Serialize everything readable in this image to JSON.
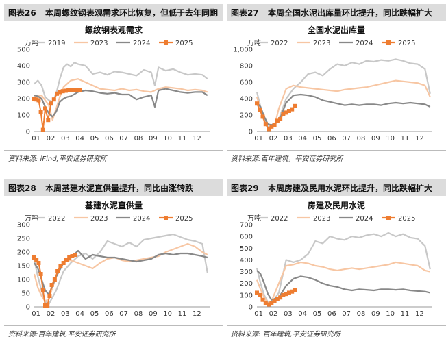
{
  "panels": [
    {
      "fig_label": "图表26",
      "title": "本周螺纹钢表观需求环比恢复，但低于去年同期",
      "source": "资料来源: iFind,平安证券研究所"
    },
    {
      "fig_label": "图表27",
      "title": "本周全国水泥出库量环比提升，同比跌幅扩大",
      "source": "资料来源:百年建筑，平安证券研究所"
    },
    {
      "fig_label": "图表28",
      "title": "本周基建水泥直供量提升，同比由涨转跌",
      "source": "资料来源:百年建筑,平安证券研究所"
    },
    {
      "fig_label": "图表29",
      "title": "本周房建及民用水泥环比提升，同比跌幅扩大",
      "source": "资料来源: 百年建筑,平安证券研究所"
    }
  ],
  "chart_data": [
    {
      "type": "line",
      "title": "螺纹钢表观需求",
      "ylabel": "万吨",
      "ylim": [
        0,
        500
      ],
      "yticks": [
        "0",
        "100",
        "200",
        "300",
        "400",
        "500"
      ],
      "x_ticks": [
        "01",
        "02",
        "03",
        "04",
        "05",
        "06",
        "07",
        "08",
        "09",
        "10",
        "11",
        "12"
      ],
      "x_range": [
        1,
        13
      ],
      "legend_position": "top",
      "series": [
        {
          "name": "2019",
          "color": "#c8c8c8",
          "x": [
            1.0,
            1.25,
            1.5,
            1.75,
            2.0,
            2.25,
            2.5,
            2.75,
            3.0,
            3.25,
            3.5,
            3.75,
            4.0,
            4.5,
            5.0,
            5.5,
            6.0,
            6.5,
            7.0,
            7.5,
            8.0,
            8.5,
            9.0,
            9.25,
            9.5,
            10.0,
            10.5,
            11.0,
            11.5,
            12.0,
            12.5,
            12.85
          ],
          "y": [
            290,
            310,
            280,
            210,
            190,
            180,
            230,
            320,
            390,
            410,
            395,
            420,
            410,
            400,
            350,
            360,
            345,
            365,
            360,
            350,
            340,
            375,
            360,
            280,
            390,
            370,
            380,
            360,
            345,
            350,
            345,
            320
          ]
        },
        {
          "name": "2023",
          "color": "#f7c6a3",
          "x": [
            1.0,
            1.5,
            2.0,
            2.25,
            2.5,
            2.75,
            3.0,
            3.5,
            4.0,
            4.5,
            5.0,
            5.5,
            6.0,
            6.5,
            7.0,
            7.5,
            8.0,
            8.5,
            9.0,
            9.5,
            10.0,
            10.5,
            11.0,
            11.5,
            12.0,
            12.5,
            12.85
          ],
          "y": [
            210,
            220,
            160,
            70,
            140,
            210,
            270,
            310,
            320,
            300,
            280,
            260,
            255,
            250,
            260,
            250,
            255,
            245,
            240,
            260,
            270,
            265,
            260,
            250,
            255,
            250,
            240
          ]
        },
        {
          "name": "2024",
          "color": "#888888",
          "x": [
            1.0,
            1.25,
            1.5,
            1.75,
            2.0,
            2.25,
            2.5,
            2.75,
            3.0,
            3.25,
            3.5,
            4.0,
            4.5,
            5.0,
            5.5,
            6.0,
            6.5,
            7.0,
            7.5,
            8.0,
            8.5,
            9.0,
            9.25,
            9.5,
            10.0,
            10.5,
            11.0,
            11.5,
            12.0,
            12.5,
            12.85
          ],
          "y": [
            220,
            215,
            200,
            150,
            110,
            90,
            120,
            180,
            200,
            210,
            215,
            240,
            250,
            245,
            235,
            230,
            235,
            225,
            225,
            195,
            210,
            220,
            150,
            250,
            260,
            250,
            240,
            235,
            240,
            240,
            220
          ]
        },
        {
          "name": "2025",
          "color": "#ee7d31",
          "marker": "square",
          "x": [
            1.0,
            1.15,
            1.3,
            1.45,
            1.6,
            1.75,
            1.95,
            2.15,
            2.35,
            2.55,
            2.75,
            2.95,
            3.15,
            3.35,
            3.55,
            3.75,
            3.95,
            4.1
          ],
          "y": [
            200,
            195,
            190,
            120,
            10,
            140,
            70,
            170,
            195,
            230,
            240,
            245,
            248,
            250,
            252,
            253,
            252,
            250
          ]
        }
      ]
    },
    {
      "type": "line",
      "title": "全国水泥出库量",
      "ylabel": "万吨",
      "ylim": [
        0,
        1000
      ],
      "yticks": [
        "0",
        "200",
        "400",
        "600",
        "800",
        "1,000"
      ],
      "x_ticks": [
        "01",
        "02",
        "03",
        "04",
        "05",
        "06",
        "07",
        "08",
        "09",
        "10",
        "11",
        "12"
      ],
      "x_range": [
        1,
        13
      ],
      "legend_position": "top",
      "series": [
        {
          "name": "2022",
          "color": "#c8c8c8",
          "x": [
            1.0,
            1.25,
            1.5,
            1.75,
            2.0,
            2.5,
            3.0,
            3.5,
            4.0,
            4.5,
            5.0,
            5.5,
            6.0,
            6.5,
            7.0,
            7.5,
            8.0,
            8.5,
            9.0,
            9.5,
            10.0,
            10.5,
            11.0,
            11.5,
            12.0,
            12.5,
            12.85
          ],
          "y": [
            480,
            300,
            150,
            60,
            40,
            150,
            400,
            520,
            600,
            700,
            720,
            680,
            760,
            820,
            800,
            840,
            820,
            860,
            850,
            870,
            860,
            880,
            860,
            830,
            820,
            760,
            460
          ]
        },
        {
          "name": "2023",
          "color": "#f7c6a3",
          "x": [
            1.0,
            1.25,
            1.5,
            1.75,
            2.0,
            2.25,
            2.5,
            3.0,
            3.5,
            4.0,
            4.5,
            5.0,
            5.5,
            6.0,
            6.5,
            7.0,
            7.5,
            8.0,
            8.5,
            9.0,
            9.5,
            10.0,
            10.5,
            11.0,
            11.5,
            12.0,
            12.5,
            12.85
          ],
          "y": [
            420,
            280,
            120,
            40,
            70,
            100,
            280,
            520,
            560,
            540,
            530,
            520,
            510,
            500,
            490,
            510,
            520,
            530,
            540,
            560,
            580,
            600,
            620,
            610,
            600,
            590,
            560,
            420
          ]
        },
        {
          "name": "2024",
          "color": "#888888",
          "x": [
            1.0,
            1.25,
            1.5,
            1.75,
            2.0,
            2.5,
            3.0,
            3.5,
            4.0,
            4.5,
            5.0,
            5.5,
            6.0,
            6.5,
            7.0,
            7.5,
            8.0,
            8.5,
            9.0,
            9.5,
            10.0,
            10.5,
            11.0,
            11.5,
            12.0,
            12.5,
            12.85
          ],
          "y": [
            350,
            300,
            180,
            90,
            80,
            120,
            350,
            440,
            450,
            440,
            420,
            380,
            360,
            340,
            320,
            330,
            320,
            330,
            330,
            320,
            340,
            350,
            340,
            350,
            340,
            330,
            300
          ]
        },
        {
          "name": "2025",
          "color": "#ee7d31",
          "marker": "square",
          "x": [
            1.0,
            1.2,
            1.4,
            1.6,
            1.8,
            2.0,
            2.2,
            2.4,
            2.6,
            2.8,
            3.0,
            3.2,
            3.4,
            3.6
          ],
          "y": [
            340,
            260,
            180,
            90,
            30,
            60,
            80,
            130,
            150,
            210,
            230,
            250,
            270,
            310
          ]
        }
      ]
    },
    {
      "type": "line",
      "title": "基建水泥直供量",
      "ylabel": "万吨",
      "ylim": [
        0,
        300
      ],
      "yticks": [
        "0",
        "50",
        "100",
        "150",
        "200",
        "250",
        "300"
      ],
      "x_ticks": [
        "01",
        "02",
        "03",
        "04",
        "05",
        "06",
        "07",
        "08",
        "09",
        "10",
        "11",
        "12"
      ],
      "x_range": [
        1,
        13
      ],
      "legend_position": "top",
      "series": [
        {
          "name": "2022",
          "color": "#c8c8c8",
          "x": [
            1.0,
            1.25,
            1.5,
            1.75,
            2.0,
            2.5,
            3.0,
            3.5,
            4.0,
            4.5,
            5.0,
            5.5,
            6.0,
            6.5,
            7.0,
            7.5,
            8.0,
            8.5,
            9.0,
            9.5,
            10.0,
            10.5,
            11.0,
            11.5,
            12.0,
            12.5,
            12.85
          ],
          "y": [
            170,
            110,
            60,
            20,
            10,
            60,
            130,
            160,
            185,
            195,
            175,
            200,
            240,
            230,
            220,
            235,
            220,
            245,
            250,
            255,
            260,
            265,
            255,
            245,
            240,
            230,
            125
          ]
        },
        {
          "name": "2023",
          "color": "#f7c6a3",
          "x": [
            1.0,
            1.25,
            1.5,
            1.75,
            2.0,
            2.5,
            3.0,
            3.5,
            4.0,
            4.5,
            5.0,
            5.5,
            6.0,
            6.5,
            7.0,
            7.5,
            8.0,
            8.5,
            9.0,
            9.5,
            10.0,
            10.5,
            11.0,
            11.5,
            12.0,
            12.5,
            12.85
          ],
          "y": [
            120,
            70,
            40,
            20,
            30,
            110,
            165,
            170,
            160,
            150,
            140,
            160,
            175,
            180,
            170,
            165,
            170,
            175,
            180,
            185,
            200,
            210,
            220,
            230,
            220,
            200,
            190
          ]
        },
        {
          "name": "2024",
          "color": "#888888",
          "x": [
            1.0,
            1.25,
            1.5,
            1.75,
            2.0,
            2.5,
            3.0,
            3.5,
            4.0,
            4.5,
            5.0,
            5.5,
            6.0,
            6.5,
            7.0,
            7.5,
            8.0,
            8.5,
            9.0,
            9.5,
            10.0,
            10.5,
            11.0,
            11.5,
            12.0,
            12.5,
            12.85
          ],
          "y": [
            160,
            140,
            100,
            60,
            45,
            110,
            160,
            180,
            205,
            175,
            190,
            185,
            180,
            180,
            175,
            170,
            165,
            170,
            175,
            190,
            195,
            190,
            195,
            195,
            190,
            185,
            180
          ]
        },
        {
          "name": "2025",
          "color": "#ee7d31",
          "marker": "square",
          "x": [
            1.0,
            1.15,
            1.3,
            1.45,
            1.6,
            1.75,
            1.9,
            2.05,
            2.2,
            2.4,
            2.6,
            2.8,
            3.0,
            3.2,
            3.4,
            3.6,
            3.8
          ],
          "y": [
            180,
            170,
            160,
            120,
            60,
            5,
            5,
            40,
            80,
            100,
            130,
            150,
            160,
            170,
            180,
            185,
            190
          ]
        }
      ]
    },
    {
      "type": "line",
      "title": "房建及民用水泥",
      "ylabel": "万吨",
      "ylim": [
        0,
        700
      ],
      "yticks": [
        "0",
        "100",
        "200",
        "300",
        "400",
        "500",
        "600",
        "700"
      ],
      "x_ticks": [
        "01",
        "02",
        "03",
        "04",
        "05",
        "06",
        "07",
        "08",
        "09",
        "10",
        "11",
        "12"
      ],
      "x_range": [
        1,
        13
      ],
      "legend_position": "top",
      "series": [
        {
          "name": "2022",
          "color": "#c8c8c8",
          "x": [
            1.0,
            1.25,
            1.5,
            1.75,
            2.0,
            2.5,
            3.0,
            3.5,
            4.0,
            4.5,
            5.0,
            5.5,
            6.0,
            6.5,
            7.0,
            7.5,
            8.0,
            8.5,
            9.0,
            9.5,
            10.0,
            10.5,
            11.0,
            11.5,
            12.0,
            12.5,
            12.85
          ],
          "y": [
            330,
            200,
            100,
            40,
            30,
            120,
            400,
            380,
            400,
            450,
            560,
            540,
            600,
            580,
            570,
            600,
            590,
            610,
            620,
            600,
            630,
            600,
            620,
            590,
            580,
            520,
            320
          ]
        },
        {
          "name": "2023",
          "color": "#f7c6a3",
          "x": [
            1.0,
            1.25,
            1.5,
            1.75,
            2.0,
            2.5,
            3.0,
            3.5,
            4.0,
            4.5,
            5.0,
            5.5,
            6.0,
            6.5,
            7.0,
            7.5,
            8.0,
            8.5,
            9.0,
            9.5,
            10.0,
            10.5,
            11.0,
            11.5,
            12.0,
            12.5,
            12.85
          ],
          "y": [
            230,
            150,
            80,
            30,
            50,
            200,
            350,
            360,
            380,
            370,
            350,
            340,
            320,
            310,
            320,
            330,
            320,
            330,
            340,
            350,
            360,
            380,
            370,
            360,
            350,
            310,
            300
          ]
        },
        {
          "name": "2024",
          "color": "#888888",
          "x": [
            1.0,
            1.25,
            1.5,
            1.75,
            2.0,
            2.5,
            3.0,
            3.5,
            4.0,
            4.5,
            5.0,
            5.5,
            6.0,
            6.5,
            7.0,
            7.5,
            8.0,
            8.5,
            9.0,
            9.5,
            10.0,
            10.5,
            11.0,
            11.5,
            12.0,
            12.5,
            12.85
          ],
          "y": [
            310,
            280,
            200,
            110,
            60,
            80,
            180,
            240,
            260,
            250,
            230,
            200,
            180,
            170,
            150,
            140,
            150,
            145,
            140,
            150,
            150,
            145,
            150,
            140,
            135,
            130,
            120
          ]
        },
        {
          "name": "2025",
          "color": "#ee7d31",
          "marker": "square",
          "x": [
            1.0,
            1.2,
            1.4,
            1.6,
            1.8,
            2.0,
            2.2,
            2.4,
            2.6,
            2.8,
            3.0,
            3.2,
            3.4,
            3.6
          ],
          "y": [
            120,
            100,
            60,
            30,
            20,
            30,
            50,
            70,
            80,
            100,
            110,
            120,
            130,
            140
          ]
        }
      ]
    }
  ]
}
